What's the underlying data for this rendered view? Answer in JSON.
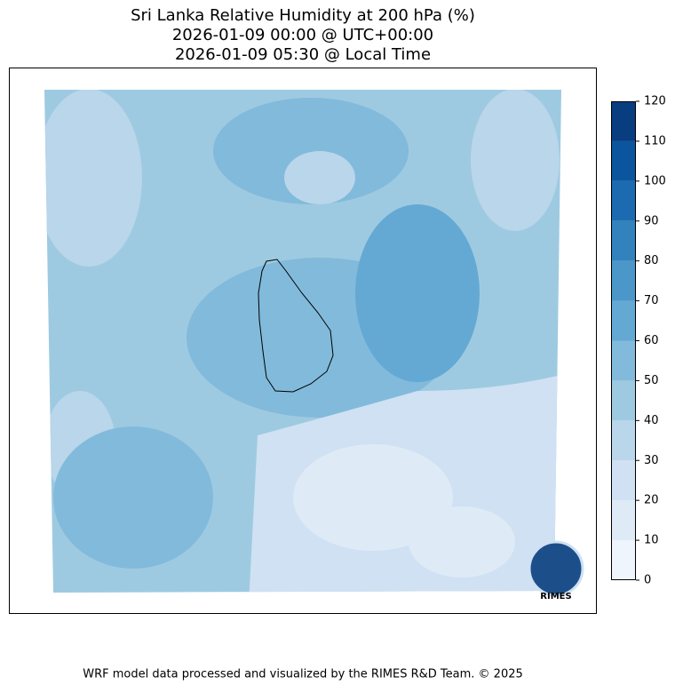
{
  "title": [
    "Sri Lanka Relative Humidity at 200 hPa (%)",
    "2026-01-09 00:00 @ UTC+00:00",
    "2026-01-09 05:30 @ Local Time"
  ],
  "colorbar": {
    "lim": [
      0,
      120
    ],
    "ticks": [
      0,
      10,
      20,
      30,
      40,
      50,
      60,
      70,
      80,
      90,
      100,
      110,
      120
    ],
    "colors": [
      "#eef5fc",
      "#deebf7",
      "#cfe1f2",
      "#b9d6ea",
      "#9ecae1",
      "#82badb",
      "#64a9d3",
      "#4b97c9",
      "#3282bd",
      "#1c6bb0",
      "#0b559f",
      "#083d7f"
    ]
  },
  "logo": "RIMES",
  "footer": "WRF model data processed and visualized by the RIMES R&D Team. © 2025"
}
